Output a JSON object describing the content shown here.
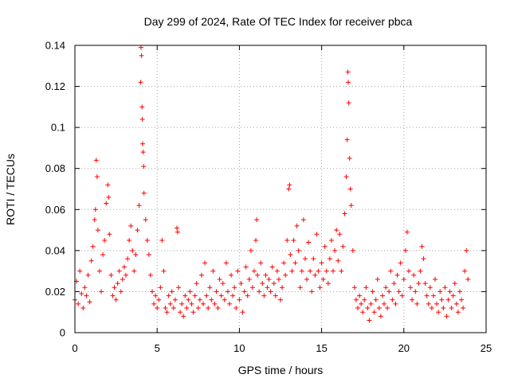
{
  "chart_data": {
    "type": "scatter",
    "title": "Day 299 of 2024, Rate Of TEC Index for receiver pbca",
    "xlabel": "GPS time / hours",
    "ylabel": "ROTI / TECUs",
    "xlim": [
      0,
      25
    ],
    "ylim": [
      0,
      0.14
    ],
    "xticks": [
      0,
      5,
      10,
      15,
      20,
      25
    ],
    "xtick_labels": [
      "0",
      "5",
      "10",
      "15",
      "20",
      "25"
    ],
    "yticks": [
      0,
      0.02,
      0.04,
      0.06,
      0.08,
      0.1,
      0.12,
      0.14
    ],
    "ytick_labels": [
      "0",
      "0.02",
      "0.04",
      "0.06",
      "0.08",
      "0.1",
      "0.12",
      "0.14"
    ],
    "grid": true,
    "marker": "+",
    "color": "#ff0000",
    "series": [
      {
        "name": "ROTI",
        "points": [
          [
            0.0,
            0.016
          ],
          [
            0.1,
            0.025
          ],
          [
            0.2,
            0.014
          ],
          [
            0.3,
            0.03
          ],
          [
            0.4,
            0.019
          ],
          [
            0.5,
            0.012
          ],
          [
            0.6,
            0.022
          ],
          [
            0.7,
            0.018
          ],
          [
            0.8,
            0.028
          ],
          [
            0.9,
            0.015
          ],
          [
            1.0,
            0.035
          ],
          [
            1.1,
            0.042
          ],
          [
            1.2,
            0.055
          ],
          [
            1.25,
            0.06
          ],
          [
            1.3,
            0.084
          ],
          [
            1.35,
            0.076
          ],
          [
            1.4,
            0.05
          ],
          [
            1.5,
            0.03
          ],
          [
            1.6,
            0.02
          ],
          [
            1.7,
            0.038
          ],
          [
            1.8,
            0.045
          ],
          [
            1.9,
            0.063
          ],
          [
            2.0,
            0.072
          ],
          [
            2.05,
            0.066
          ],
          [
            2.1,
            0.048
          ],
          [
            2.2,
            0.028
          ],
          [
            2.3,
            0.018
          ],
          [
            2.4,
            0.022
          ],
          [
            2.5,
            0.016
          ],
          [
            2.6,
            0.024
          ],
          [
            2.7,
            0.03
          ],
          [
            2.8,
            0.02
          ],
          [
            2.9,
            0.026
          ],
          [
            3.0,
            0.032
          ],
          [
            3.1,
            0.028
          ],
          [
            3.2,
            0.036
          ],
          [
            3.3,
            0.045
          ],
          [
            3.4,
            0.052
          ],
          [
            3.5,
            0.04
          ],
          [
            3.6,
            0.03
          ],
          [
            3.7,
            0.038
          ],
          [
            3.8,
            0.05
          ],
          [
            3.9,
            0.062
          ],
          [
            4.0,
            0.122
          ],
          [
            4.02,
            0.139
          ],
          [
            4.05,
            0.135
          ],
          [
            4.08,
            0.11
          ],
          [
            4.1,
            0.104
          ],
          [
            4.12,
            0.092
          ],
          [
            4.15,
            0.088
          ],
          [
            4.18,
            0.081
          ],
          [
            4.2,
            0.068
          ],
          [
            4.3,
            0.055
          ],
          [
            4.4,
            0.045
          ],
          [
            4.5,
            0.038
          ],
          [
            4.6,
            0.028
          ],
          [
            4.7,
            0.02
          ],
          [
            4.8,
            0.014
          ],
          [
            4.9,
            0.018
          ],
          [
            5.0,
            0.012
          ],
          [
            5.1,
            0.016
          ],
          [
            5.2,
            0.022
          ],
          [
            5.3,
            0.045
          ],
          [
            5.4,
            0.03
          ],
          [
            5.5,
            0.012
          ],
          [
            5.6,
            0.01
          ],
          [
            5.7,
            0.018
          ],
          [
            5.8,
            0.014
          ],
          [
            5.9,
            0.02
          ],
          [
            6.0,
            0.012
          ],
          [
            6.1,
            0.016
          ],
          [
            6.2,
            0.051
          ],
          [
            6.25,
            0.049
          ],
          [
            6.3,
            0.022
          ],
          [
            6.4,
            0.01
          ],
          [
            6.5,
            0.014
          ],
          [
            6.6,
            0.008
          ],
          [
            6.7,
            0.018
          ],
          [
            6.8,
            0.012
          ],
          [
            6.9,
            0.016
          ],
          [
            7.0,
            0.02
          ],
          [
            7.1,
            0.014
          ],
          [
            7.2,
            0.01
          ],
          [
            7.3,
            0.018
          ],
          [
            7.4,
            0.024
          ],
          [
            7.5,
            0.012
          ],
          [
            7.6,
            0.016
          ],
          [
            7.7,
            0.028
          ],
          [
            7.8,
            0.014
          ],
          [
            7.9,
            0.034
          ],
          [
            8.0,
            0.018
          ],
          [
            8.1,
            0.012
          ],
          [
            8.2,
            0.022
          ],
          [
            8.3,
            0.016
          ],
          [
            8.4,
            0.03
          ],
          [
            8.5,
            0.014
          ],
          [
            8.6,
            0.02
          ],
          [
            8.7,
            0.012
          ],
          [
            8.8,
            0.026
          ],
          [
            8.9,
            0.018
          ],
          [
            9.0,
            0.024
          ],
          [
            9.1,
            0.016
          ],
          [
            9.2,
            0.034
          ],
          [
            9.3,
            0.02
          ],
          [
            9.4,
            0.014
          ],
          [
            9.5,
            0.028
          ],
          [
            9.6,
            0.018
          ],
          [
            9.7,
            0.022
          ],
          [
            9.8,
            0.012
          ],
          [
            9.9,
            0.03
          ],
          [
            10.0,
            0.016
          ],
          [
            10.1,
            0.024
          ],
          [
            10.2,
            0.01
          ],
          [
            10.3,
            0.02
          ],
          [
            10.4,
            0.032
          ],
          [
            10.5,
            0.018
          ],
          [
            10.6,
            0.026
          ],
          [
            10.7,
            0.04
          ],
          [
            10.8,
            0.022
          ],
          [
            10.9,
            0.03
          ],
          [
            11.0,
            0.045
          ],
          [
            11.05,
            0.055
          ],
          [
            11.1,
            0.028
          ],
          [
            11.2,
            0.02
          ],
          [
            11.3,
            0.034
          ],
          [
            11.4,
            0.024
          ],
          [
            11.5,
            0.018
          ],
          [
            11.6,
            0.028
          ],
          [
            11.7,
            0.022
          ],
          [
            11.8,
            0.026
          ],
          [
            11.9,
            0.02
          ],
          [
            12.0,
            0.032
          ],
          [
            12.1,
            0.024
          ],
          [
            12.2,
            0.018
          ],
          [
            12.3,
            0.03
          ],
          [
            12.4,
            0.026
          ],
          [
            12.5,
            0.016
          ],
          [
            12.6,
            0.022
          ],
          [
            12.7,
            0.034
          ],
          [
            12.8,
            0.028
          ],
          [
            12.9,
            0.045
          ],
          [
            13.0,
            0.07
          ],
          [
            13.05,
            0.072
          ],
          [
            13.1,
            0.038
          ],
          [
            13.2,
            0.03
          ],
          [
            13.3,
            0.045
          ],
          [
            13.4,
            0.034
          ],
          [
            13.5,
            0.052
          ],
          [
            13.6,
            0.04
          ],
          [
            13.7,
            0.022
          ],
          [
            13.8,
            0.03
          ],
          [
            13.9,
            0.055
          ],
          [
            14.0,
            0.036
          ],
          [
            14.1,
            0.026
          ],
          [
            14.2,
            0.044
          ],
          [
            14.3,
            0.03
          ],
          [
            14.4,
            0.02
          ],
          [
            14.5,
            0.036
          ],
          [
            14.6,
            0.028
          ],
          [
            14.7,
            0.048
          ],
          [
            14.8,
            0.03
          ],
          [
            14.9,
            0.022
          ],
          [
            15.0,
            0.034
          ],
          [
            15.1,
            0.026
          ],
          [
            15.2,
            0.042
          ],
          [
            15.3,
            0.03
          ],
          [
            15.4,
            0.024
          ],
          [
            15.5,
            0.036
          ],
          [
            15.6,
            0.045
          ],
          [
            15.7,
            0.03
          ],
          [
            15.8,
            0.04
          ],
          [
            15.9,
            0.05
          ],
          [
            16.0,
            0.035
          ],
          [
            16.1,
            0.048
          ],
          [
            16.2,
            0.03
          ],
          [
            16.3,
            0.042
          ],
          [
            16.4,
            0.058
          ],
          [
            16.5,
            0.076
          ],
          [
            16.55,
            0.094
          ],
          [
            16.6,
            0.127
          ],
          [
            16.62,
            0.122
          ],
          [
            16.65,
            0.112
          ],
          [
            16.7,
            0.085
          ],
          [
            16.75,
            0.07
          ],
          [
            16.8,
            0.062
          ],
          [
            16.9,
            0.04
          ],
          [
            17.0,
            0.022
          ],
          [
            17.1,
            0.016
          ],
          [
            17.2,
            0.012
          ],
          [
            17.3,
            0.018
          ],
          [
            17.4,
            0.014
          ],
          [
            17.5,
            0.01
          ],
          [
            17.6,
            0.016
          ],
          [
            17.7,
            0.022
          ],
          [
            17.8,
            0.012
          ],
          [
            17.9,
            0.006
          ],
          [
            18.0,
            0.014
          ],
          [
            18.1,
            0.02
          ],
          [
            18.2,
            0.01
          ],
          [
            18.3,
            0.016
          ],
          [
            18.4,
            0.026
          ],
          [
            18.5,
            0.012
          ],
          [
            18.6,
            0.008
          ],
          [
            18.7,
            0.018
          ],
          [
            18.8,
            0.014
          ],
          [
            18.9,
            0.022
          ],
          [
            19.0,
            0.012
          ],
          [
            19.1,
            0.02
          ],
          [
            19.2,
            0.03
          ],
          [
            19.3,
            0.016
          ],
          [
            19.4,
            0.024
          ],
          [
            19.5,
            0.014
          ],
          [
            19.6,
            0.028
          ],
          [
            19.7,
            0.02
          ],
          [
            19.8,
            0.034
          ],
          [
            19.9,
            0.018
          ],
          [
            20.0,
            0.026
          ],
          [
            20.1,
            0.04
          ],
          [
            20.2,
            0.049
          ],
          [
            20.3,
            0.03
          ],
          [
            20.4,
            0.022
          ],
          [
            20.5,
            0.016
          ],
          [
            20.6,
            0.028
          ],
          [
            20.7,
            0.02
          ],
          [
            20.8,
            0.014
          ],
          [
            20.9,
            0.024
          ],
          [
            21.0,
            0.03
          ],
          [
            21.1,
            0.042
          ],
          [
            21.2,
            0.036
          ],
          [
            21.3,
            0.024
          ],
          [
            21.4,
            0.018
          ],
          [
            21.5,
            0.014
          ],
          [
            21.6,
            0.022
          ],
          [
            21.7,
            0.012
          ],
          [
            21.8,
            0.018
          ],
          [
            21.9,
            0.026
          ],
          [
            22.0,
            0.014
          ],
          [
            22.1,
            0.01
          ],
          [
            22.2,
            0.02
          ],
          [
            22.3,
            0.016
          ],
          [
            22.4,
            0.012
          ],
          [
            22.5,
            0.022
          ],
          [
            22.6,
            0.008
          ],
          [
            22.7,
            0.016
          ],
          [
            22.8,
            0.02
          ],
          [
            22.9,
            0.012
          ],
          [
            23.0,
            0.018
          ],
          [
            23.1,
            0.024
          ],
          [
            23.2,
            0.014
          ],
          [
            23.3,
            0.01
          ],
          [
            23.4,
            0.02
          ],
          [
            23.5,
            0.016
          ],
          [
            23.6,
            0.012
          ],
          [
            23.7,
            0.03
          ],
          [
            23.8,
            0.04
          ],
          [
            23.9,
            0.026
          ]
        ]
      }
    ]
  }
}
